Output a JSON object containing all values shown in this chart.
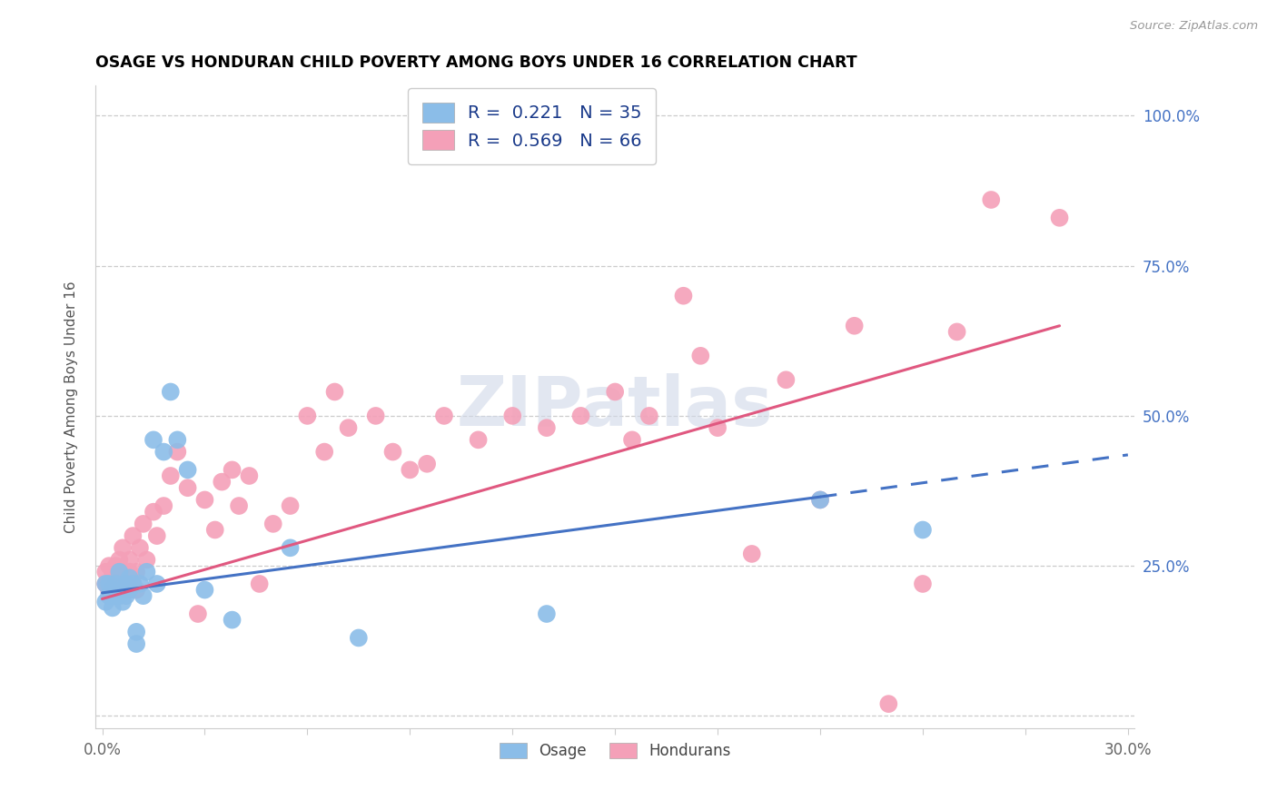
{
  "title": "OSAGE VS HONDURAN CHILD POVERTY AMONG BOYS UNDER 16 CORRELATION CHART",
  "source": "Source: ZipAtlas.com",
  "ylabel": "Child Poverty Among Boys Under 16",
  "xlim": [
    -0.002,
    0.302
  ],
  "ylim": [
    -0.02,
    1.05
  ],
  "x_ticks": [
    0.0,
    0.03,
    0.06,
    0.09,
    0.12,
    0.15,
    0.18,
    0.21,
    0.24,
    0.27,
    0.3
  ],
  "y_ticks": [
    0.0,
    0.25,
    0.5,
    0.75,
    1.0
  ],
  "y_right_labels": [
    "",
    "25.0%",
    "50.0%",
    "75.0%",
    "100.0%"
  ],
  "watermark": "ZIPatlas",
  "osage_R": "0.221",
  "osage_N": "35",
  "honduran_R": "0.569",
  "honduran_N": "66",
  "osage_color": "#8BBDE8",
  "honduran_color": "#F4A0B8",
  "osage_line_color": "#4472C4",
  "honduran_line_color": "#E05880",
  "osage_scatter_x": [
    0.001,
    0.001,
    0.002,
    0.002,
    0.003,
    0.003,
    0.004,
    0.004,
    0.005,
    0.005,
    0.006,
    0.006,
    0.007,
    0.007,
    0.008,
    0.008,
    0.009,
    0.01,
    0.01,
    0.011,
    0.012,
    0.013,
    0.015,
    0.016,
    0.018,
    0.02,
    0.022,
    0.025,
    0.03,
    0.038,
    0.055,
    0.075,
    0.13,
    0.21,
    0.24
  ],
  "osage_scatter_y": [
    0.22,
    0.19,
    0.22,
    0.2,
    0.21,
    0.18,
    0.2,
    0.22,
    0.2,
    0.24,
    0.21,
    0.19,
    0.22,
    0.2,
    0.23,
    0.21,
    0.22,
    0.14,
    0.12,
    0.22,
    0.2,
    0.24,
    0.46,
    0.22,
    0.44,
    0.54,
    0.46,
    0.41,
    0.21,
    0.16,
    0.28,
    0.13,
    0.17,
    0.36,
    0.31
  ],
  "honduran_scatter_x": [
    0.001,
    0.001,
    0.002,
    0.002,
    0.003,
    0.003,
    0.004,
    0.005,
    0.005,
    0.006,
    0.006,
    0.007,
    0.007,
    0.008,
    0.008,
    0.009,
    0.009,
    0.01,
    0.01,
    0.011,
    0.012,
    0.013,
    0.015,
    0.016,
    0.018,
    0.02,
    0.022,
    0.025,
    0.028,
    0.03,
    0.033,
    0.035,
    0.038,
    0.04,
    0.043,
    0.046,
    0.05,
    0.055,
    0.06,
    0.065,
    0.068,
    0.072,
    0.08,
    0.085,
    0.09,
    0.095,
    0.1,
    0.11,
    0.12,
    0.13,
    0.14,
    0.15,
    0.155,
    0.16,
    0.17,
    0.175,
    0.18,
    0.19,
    0.2,
    0.21,
    0.22,
    0.23,
    0.24,
    0.25,
    0.26,
    0.28
  ],
  "honduran_scatter_y": [
    0.22,
    0.24,
    0.21,
    0.25,
    0.22,
    0.24,
    0.25,
    0.26,
    0.22,
    0.28,
    0.24,
    0.22,
    0.21,
    0.26,
    0.24,
    0.3,
    0.22,
    0.24,
    0.21,
    0.28,
    0.32,
    0.26,
    0.34,
    0.3,
    0.35,
    0.4,
    0.44,
    0.38,
    0.17,
    0.36,
    0.31,
    0.39,
    0.41,
    0.35,
    0.4,
    0.22,
    0.32,
    0.35,
    0.5,
    0.44,
    0.54,
    0.48,
    0.5,
    0.44,
    0.41,
    0.42,
    0.5,
    0.46,
    0.5,
    0.48,
    0.5,
    0.54,
    0.46,
    0.5,
    0.7,
    0.6,
    0.48,
    0.27,
    0.56,
    0.36,
    0.65,
    0.02,
    0.22,
    0.64,
    0.86,
    0.83
  ],
  "osage_line_x0": 0.0,
  "osage_line_y0": 0.205,
  "osage_line_x1": 0.21,
  "osage_line_y1": 0.365,
  "osage_line_x2": 0.3,
  "osage_line_y2": 0.435,
  "honduran_line_x0": 0.0,
  "honduran_line_y0": 0.195,
  "honduran_line_x1": 0.28,
  "honduran_line_y1": 0.65
}
